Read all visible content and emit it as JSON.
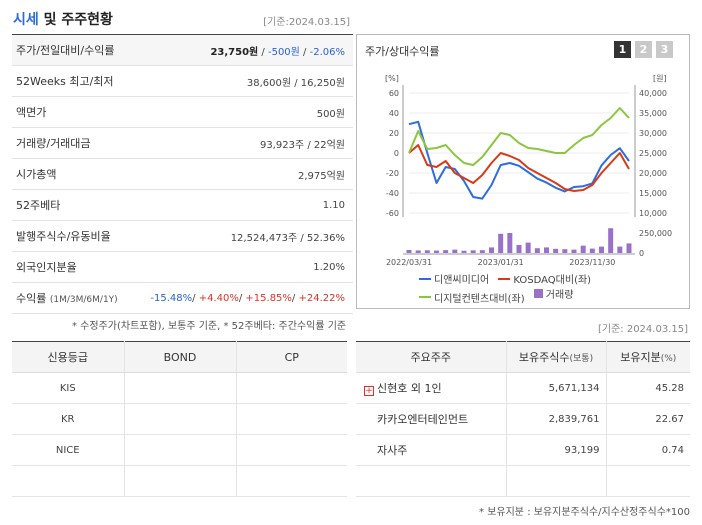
{
  "header": {
    "title_accent": "시세",
    "title_rest": " 및 주주현황",
    "date": "[기준:2024.03.15]"
  },
  "summary": {
    "rows": [
      {
        "label": "주가/전일대비/수익률",
        "price": "23,750원",
        "change": "-500원",
        "rate": "-2.06%"
      },
      {
        "label": "52Weeks 최고/최저",
        "value": "38,600원 / 16,250원"
      },
      {
        "label": "액면가",
        "value": "500원"
      },
      {
        "label": "거래량/거래대금",
        "value": "93,923주 / 22억원"
      },
      {
        "label": "시가총액",
        "value": "2,975억원"
      },
      {
        "label": "52주베타",
        "value": "1.10"
      },
      {
        "label": "발행주식수/유동비율",
        "value": "12,524,473주 / 52.36%"
      },
      {
        "label": "외국인지분율",
        "value": "1.20%"
      },
      {
        "label": "수익률",
        "sub": "(1M/3M/6M/1Y)",
        "r1": "-15.48%",
        "r2": "+4.40%",
        "r3": "+15.85%",
        "r4": "+24.22%"
      }
    ],
    "footnote": "* 수정주가(차트포함), 보통주 기준, * 52주베타: 주간수익률 기준"
  },
  "chart": {
    "title": "주가/상대수익률",
    "pages": [
      "1",
      "2",
      "3"
    ],
    "left_unit": "[%]",
    "right_unit": "[원]",
    "left_ticks": [
      "60",
      "40",
      "20",
      "0",
      "-20",
      "-40",
      "-60"
    ],
    "right_ticks": [
      "40,000",
      "35,000",
      "30,000",
      "25,000",
      "20,000",
      "15,000",
      "10,000"
    ],
    "vol_ticks": [
      "250,000",
      "0"
    ],
    "x_labels": [
      "2022/03/31",
      "2023/01/31",
      "2023/11/30"
    ],
    "legend": [
      "디앤씨미디어",
      "KOSDAQ대비(좌)",
      "디지털컨텐츠대비(좌)",
      "거래량"
    ],
    "colors": {
      "stock": "#2c6ce0",
      "kosdaq": "#d83a17",
      "digital": "#8cc63f",
      "volume": "#9a71c9"
    }
  },
  "chart_data": {
    "type": "line",
    "x": [
      "2022/03",
      "2022/04",
      "2022/05",
      "2022/06",
      "2022/07",
      "2022/08",
      "2022/09",
      "2022/10",
      "2022/11",
      "2022/12",
      "2023/01",
      "2023/02",
      "2023/03",
      "2023/04",
      "2023/05",
      "2023/06",
      "2023/07",
      "2023/08",
      "2023/09",
      "2023/10",
      "2023/11",
      "2023/12",
      "2024/01",
      "2024/02",
      "2024/03"
    ],
    "x_ticks": [
      "2022/03/31",
      "2023/01/31",
      "2023/11/30"
    ],
    "series": [
      {
        "name": "디앤씨미디어",
        "axis": "right",
        "unit": "원",
        "values": [
          32200,
          32800,
          25000,
          17500,
          21500,
          21000,
          18000,
          14000,
          13600,
          17000,
          22000,
          22500,
          21800,
          20200,
          18600,
          17600,
          16300,
          15400,
          16500,
          16700,
          17400,
          21900,
          24500,
          26200,
          23000
        ]
      },
      {
        "name": "KOSDAQ대비(좌)",
        "axis": "left",
        "unit": "%",
        "values": [
          0,
          8,
          -12,
          -14,
          -8,
          -20,
          -25,
          -30,
          -22,
          -10,
          0,
          -3,
          -7,
          -15,
          -20,
          -25,
          -30,
          -36,
          -38,
          -37,
          -32,
          -20,
          -10,
          0,
          -16
        ]
      },
      {
        "name": "디지털컨텐츠대비(좌)",
        "axis": "left",
        "unit": "%",
        "values": [
          0,
          22,
          4,
          5,
          8,
          -2,
          -10,
          -12,
          -4,
          8,
          20,
          18,
          10,
          5,
          4,
          2,
          0,
          0,
          8,
          15,
          18,
          28,
          35,
          45,
          35
        ]
      },
      {
        "name": "거래량",
        "axis": "volume",
        "values": [
          38000,
          32000,
          34000,
          30000,
          36000,
          42000,
          28000,
          33000,
          35000,
          70000,
          240000,
          250000,
          100000,
          130000,
          60000,
          70000,
          52000,
          48000,
          42000,
          92000,
          55000,
          80000,
          310000,
          80000,
          120000
        ]
      }
    ],
    "left_range": [
      -60,
      60
    ],
    "right_range": [
      10000,
      40000
    ],
    "volume_range": [
      0,
      250000
    ],
    "legend_position": "bottom"
  },
  "credit": {
    "headers": [
      "신용등급",
      "BOND",
      "CP"
    ],
    "rows": [
      [
        "KIS",
        "",
        ""
      ],
      [
        "KR",
        "",
        ""
      ],
      [
        "NICE",
        "",
        ""
      ],
      [
        "",
        "",
        ""
      ]
    ]
  },
  "holders": {
    "date": "[기준: 2024.03.15]",
    "headers": [
      "주요주주",
      "보유주식수",
      "(보통)",
      "보유지분",
      "(%)"
    ],
    "rows": [
      {
        "name": "신현호 외 1인",
        "shares": "5,671,134",
        "pct": "45.28",
        "expandable": true
      },
      {
        "name": "카카오엔터테인먼트",
        "shares": "2,839,761",
        "pct": "22.67",
        "expandable": false
      },
      {
        "name": "자사주",
        "shares": "93,199",
        "pct": "0.74",
        "expandable": false
      },
      {
        "name": "",
        "shares": "",
        "pct": "",
        "expandable": false
      }
    ],
    "footnote": "* 보유지분 : 보유지분주식수/지수산정주식수*100"
  }
}
